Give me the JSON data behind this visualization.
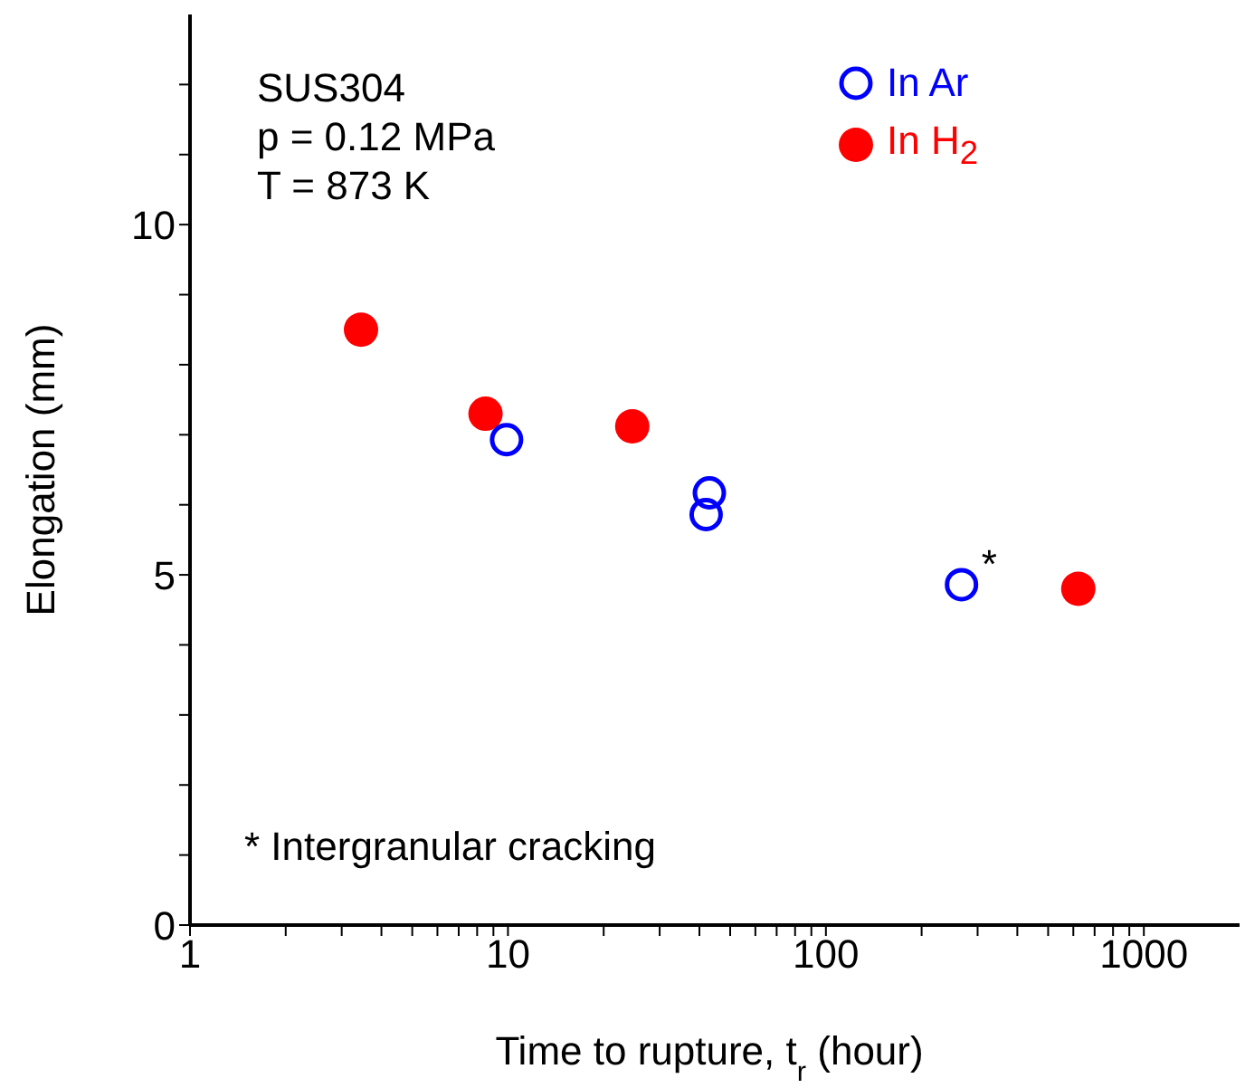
{
  "chart_data": {
    "type": "scatter",
    "xlabel": "Time to rupture, t$_{r}$ (hour)",
    "ylabel": "Elongation (mm)",
    "log": "x",
    "xlim": [
      1,
      2000
    ],
    "xticks": [
      1,
      {
        "value": 2,
        "label": null
      },
      {
        "value": 3,
        "label": null
      },
      {
        "value": 4,
        "label": null
      },
      {
        "value": 5,
        "label": null
      },
      {
        "value": 6,
        "label": null
      },
      {
        "value": 7,
        "label": null
      },
      {
        "value": 8,
        "label": null
      },
      {
        "value": 9,
        "label": null
      },
      10,
      {
        "value": 20,
        "label": null
      },
      {
        "value": 30,
        "label": null
      },
      {
        "value": 40,
        "label": null
      },
      {
        "value": 50,
        "label": null
      },
      {
        "value": 60,
        "label": null
      },
      {
        "value": 70,
        "label": null
      },
      {
        "value": 80,
        "label": null
      },
      {
        "value": 90,
        "label": null
      },
      100,
      {
        "value": 200,
        "label": null
      },
      {
        "value": 300,
        "label": null
      },
      {
        "value": 400,
        "label": null
      },
      {
        "value": 500,
        "label": null
      },
      {
        "value": 600,
        "label": null
      },
      {
        "value": 700,
        "label": null
      },
      {
        "value": 800,
        "label": null
      },
      {
        "value": 900,
        "label": null
      },
      1000
    ],
    "ylim": [
      0,
      13
    ],
    "yticks": [
      0,
      {
        "value": 1,
        "label": null
      },
      {
        "value": 2,
        "label": null
      },
      {
        "value": 3,
        "label": null
      },
      {
        "value": 4,
        "label": null
      },
      5,
      {
        "value": 6,
        "label": null
      },
      {
        "value": 7,
        "label": null
      },
      {
        "value": 8,
        "label": null
      },
      {
        "value": 9,
        "label": null
      },
      10,
      {
        "value": 11,
        "label": null
      },
      {
        "value": 12,
        "label": null
      }
    ],
    "grid": false,
    "marker": "circle",
    "legend": "top right",
    "series": [
      {
        "name": "In Ar",
        "color": "#0000ff",
        "x": [
          9.9,
          43,
          42,
          267
        ],
        "values": [
          6.93,
          6.17,
          5.86,
          4.86
        ]
      },
      {
        "name": "In H$_{2}$",
        "color": "#ff0000",
        "x": [
          3.45,
          8.5,
          24.6,
          622
        ],
        "values": [
          8.5,
          7.3,
          7.12,
          4.8
        ]
      }
    ],
    "annotations": [
      "SUS304",
      "p = 0.12 MPa",
      "T = 873 K",
      {
        "text": "*",
        "x": 267,
        "y": 4.86
      },
      "* Intergranular cracking"
    ]
  }
}
